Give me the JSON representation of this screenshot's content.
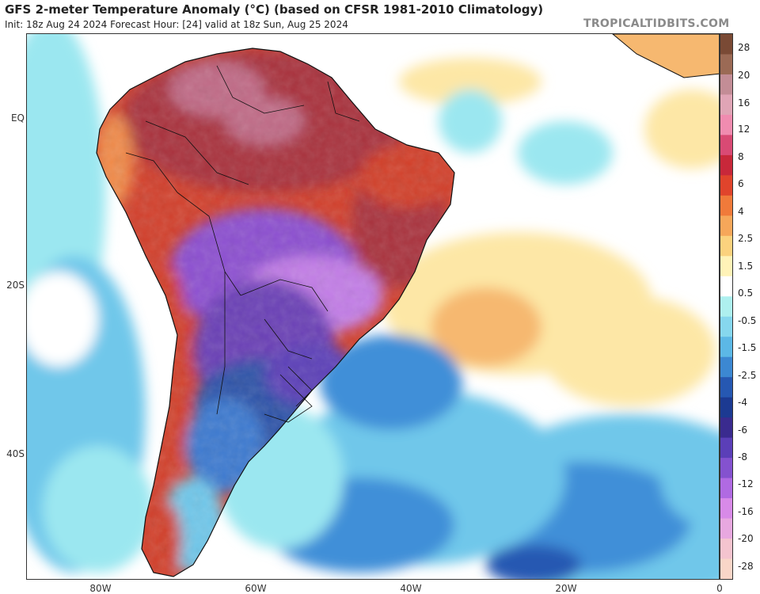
{
  "header": {
    "title": "GFS 2-meter Temperature Anomaly (°C) (based on CFSR 1981-2010 Climatology)",
    "subtitle": "Init: 18z Aug 24 2024   Forecast Hour: [24]   valid at 18z Sun, Aug 25 2024",
    "watermark": "TROPICALTIDBITS.COM"
  },
  "axes": {
    "lat_labels": [
      "EQ",
      "20S",
      "40S"
    ],
    "lon_labels": [
      "80W",
      "60W",
      "40W",
      "20W",
      "0"
    ]
  },
  "legend": {
    "labels": [
      "28",
      "20",
      "16",
      "12",
      "8",
      "6",
      "4",
      "2.5",
      "1.5",
      "0.5",
      "-0.5",
      "-1.5",
      "-2.5",
      "-4",
      "-6",
      "-8",
      "-12",
      "-16",
      "-20",
      "-28"
    ],
    "colors": [
      "#7a4a35",
      "#9b6a55",
      "#c38d96",
      "#e0a5b6",
      "#f08cb0",
      "#d94a74",
      "#c8283a",
      "#e0442c",
      "#f07a3a",
      "#f6a75a",
      "#fbd27e",
      "#fff3b8",
      "#ffffff",
      "#aef0ef",
      "#86d7ee",
      "#5cb8e6",
      "#3c88d2",
      "#2658b2",
      "#1c3a92",
      "#3a2b8f",
      "#5b3fb8",
      "#8452cf",
      "#b06ae2",
      "#d88ae8",
      "#e8a8e0",
      "#f4c4cf",
      "#f9d6c8"
    ]
  },
  "map": {
    "land_colors": {
      "hot_deep": "#a9303c",
      "hot": "#d2402c",
      "hot_pink": "#c06a86",
      "warm": "#f08a48",
      "cold_purple": "#8c4fd0",
      "cold_violet": "#6a3fb6",
      "cold_blue": "#2d52a8",
      "cold_light": "#3c7ad0"
    },
    "ocean_colors": {
      "neutral": "#ffffff",
      "cool_light": "#9be7f0",
      "cool": "#6fc7ea",
      "cold": "#3f8fd8",
      "warm_light": "#fde7a6",
      "warm": "#f6b870"
    }
  }
}
